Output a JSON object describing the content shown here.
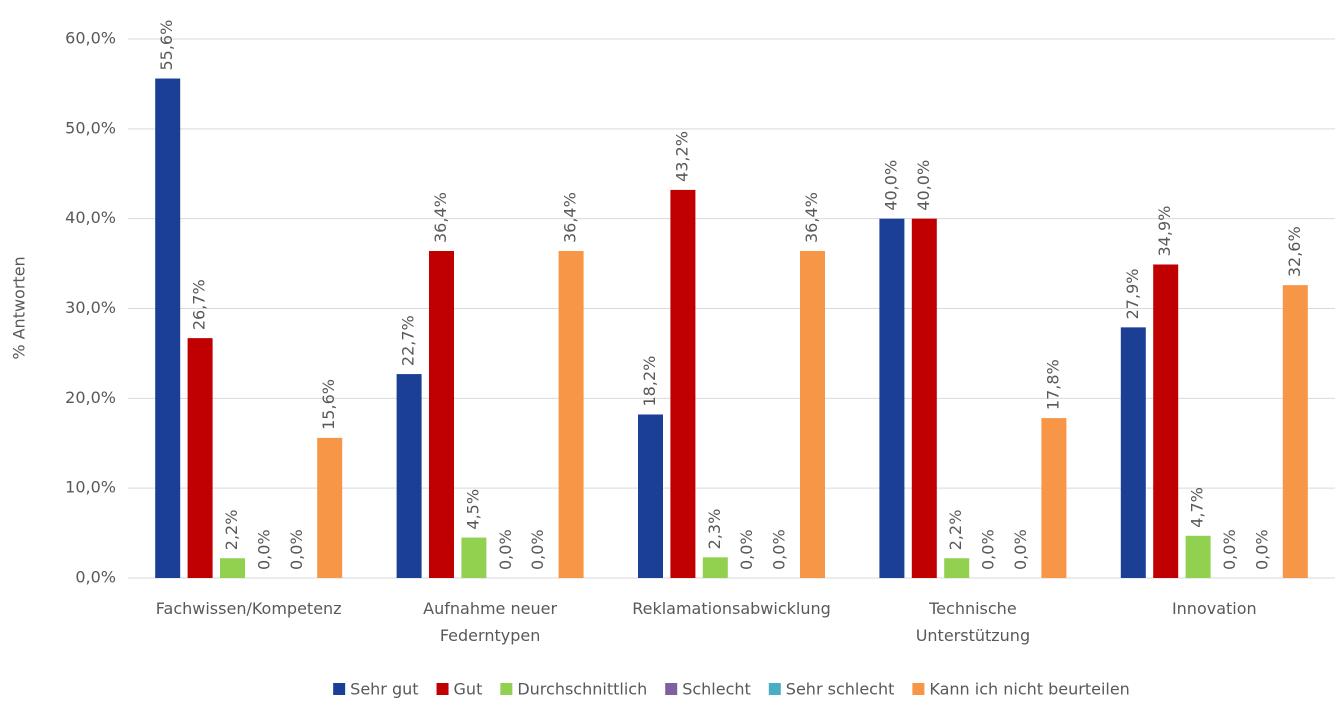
{
  "chart_data": {
    "type": "bar",
    "y_axis_label": "% Antworten",
    "categories": [
      "Fachwissen/Kompetenz",
      "Aufnahme neuer Federntypen",
      "Reklamationsabwicklung",
      "Technische Unterstützung",
      "Innovation"
    ],
    "series": [
      {
        "name": "Sehr gut",
        "color": "#1a3f95",
        "values": [
          55.6,
          22.7,
          18.2,
          40.0,
          27.9
        ],
        "value_labels": [
          "55,6%",
          "22,7%",
          "18,2%",
          "40,0%",
          "27,9%"
        ]
      },
      {
        "name": "Gut",
        "color": "#c00000",
        "values": [
          26.7,
          36.4,
          43.2,
          40.0,
          34.9
        ],
        "value_labels": [
          "26,7%",
          "36,4%",
          "43,2%",
          "40,0%",
          "34,9%"
        ]
      },
      {
        "name": "Durchschnittlich",
        "color": "#92d050",
        "values": [
          2.2,
          4.5,
          2.3,
          2.2,
          4.7
        ],
        "value_labels": [
          "2,2%",
          "4,5%",
          "2,3%",
          "2,2%",
          "4,7%"
        ]
      },
      {
        "name": "Schlecht",
        "color": "#7f5fa0",
        "values": [
          0,
          0,
          0,
          0,
          0
        ],
        "value_labels": [
          "0,0%",
          "0,0%",
          "0,0%",
          "0,0%",
          "0,0%"
        ]
      },
      {
        "name": "Sehr schlecht",
        "color": "#4bacc6",
        "values": [
          0,
          0,
          0,
          0,
          0
        ],
        "value_labels": [
          "0,0%",
          "0,0%",
          "0,0%",
          "0,0%",
          "0,0%"
        ]
      },
      {
        "name": "Kann ich nicht beurteilen",
        "color": "#f79646",
        "values": [
          15.6,
          36.4,
          36.4,
          17.8,
          32.6
        ],
        "value_labels": [
          "15,6%",
          "36,4%",
          "36,4%",
          "17,8%",
          "32,6%"
        ]
      }
    ],
    "ylim": [
      0,
      60
    ],
    "yticks": [
      {
        "value": 0,
        "label": "0,0%"
      },
      {
        "value": 10,
        "label": "10,0%"
      },
      {
        "value": 20,
        "label": "20,0%"
      },
      {
        "value": 30,
        "label": "30,0%"
      },
      {
        "value": 40,
        "label": "40,0%"
      },
      {
        "value": 50,
        "label": "50,0%"
      },
      {
        "value": 60,
        "label": "60,0%"
      }
    ],
    "grid": true,
    "legend": "bottom"
  }
}
